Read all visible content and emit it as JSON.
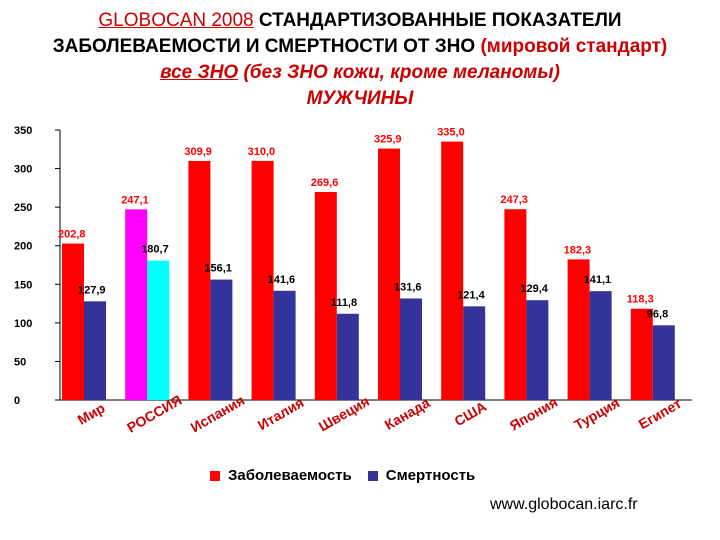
{
  "title": {
    "line1_a": "GLOBOCAN 2008",
    "line1_b": "СТАНДАРТИЗОВАННЫЕ ПОКАЗАТЕЛИ",
    "line2_a": "ЗАБОЛЕВАЕМОСТИ И СМЕРТНОСТИ ОТ ЗНО",
    "line2_b": "(мировой стандарт)",
    "line3_a": "все ЗНО",
    "line3_b": "(без ЗНО кожи, кроме меланомы)",
    "line4": "МУЖЧИНЫ"
  },
  "colors": {
    "incidence": "#ff0000",
    "mortality": "#333399",
    "russia_incidence": "#ff00ff",
    "russia_mortality": "#00ffff",
    "title_red": "#cc0000",
    "category_labels": "#cc0000"
  },
  "chart_data": {
    "type": "bar",
    "categories": [
      "Мир",
      "РОССИЯ",
      "Испания",
      "Италия",
      "Швеция",
      "Канада",
      "США",
      "Япония",
      "Турция",
      "Египет"
    ],
    "series": [
      {
        "name": "Заболеваемость",
        "values": [
          202.8,
          247.1,
          309.9,
          310.0,
          269.6,
          325.9,
          335.0,
          247.3,
          182.3,
          118.3
        ]
      },
      {
        "name": "Смертность",
        "values": [
          127.9,
          180.7,
          156.1,
          141.6,
          111.8,
          131.6,
          121.4,
          129.4,
          141.1,
          96.8
        ]
      }
    ],
    "data_labels": {
      "incidence": [
        "202,8",
        "247,1",
        "309,9",
        "310,0",
        "269,6",
        "325,9",
        "335,0",
        "247,3",
        "182,3",
        "118,3"
      ],
      "mortality": [
        "127,9",
        "180,7",
        "156,1",
        "141,6",
        "111,8",
        "131,6",
        "121,4",
        "129,4",
        "141,1",
        "96,8"
      ]
    },
    "ylim": [
      0,
      350
    ],
    "yticks": [
      "0",
      "50",
      "100",
      "150",
      "200",
      "250",
      "300",
      "350"
    ],
    "ytick_values": [
      0,
      50,
      100,
      150,
      200,
      250,
      300,
      350
    ],
    "grid": false,
    "legend_placement": "bottom"
  },
  "legend": {
    "incidence": "Заболеваемость",
    "mortality": "Смертность"
  },
  "footer": "www.globocan.iarc.fr"
}
